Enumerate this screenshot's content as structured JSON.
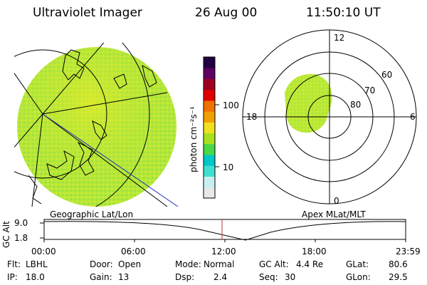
{
  "header": {
    "instrument": "Ultraviolet Imager",
    "date": "26 Aug 00",
    "time": "11:50:10 UT"
  },
  "colorbar": {
    "unit_label": "photon cm⁻²s⁻¹",
    "tick_100": "100",
    "tick_10": "10",
    "colors": [
      "#e8e8e8",
      "#c8f0f0",
      "#40e0d0",
      "#00c8c8",
      "#48d848",
      "#a8e020",
      "#f0e020",
      "#f0a000",
      "#f07000",
      "#e00000",
      "#a00020",
      "#600060",
      "#200040"
    ]
  },
  "geo_panel": {
    "label": "Geographic Lat/Lon",
    "fill_color": "#b4e83a"
  },
  "polar_panel": {
    "label": "Apex MLat/MLT",
    "mlt_12": "12",
    "mlt_18": "18",
    "mlt_6": "6",
    "mlt_0": "0",
    "lat_60": "60",
    "lat_70": "70",
    "lat_80": "80"
  },
  "altitude_plot": {
    "ylabel": "GC Alt",
    "y_top": "9.0",
    "y_bottom": "1.8",
    "x_ticks": [
      "00:00",
      "06:00",
      "12:00",
      "18:00",
      "23:59"
    ]
  },
  "footer": {
    "filter_label": "Flt:",
    "filter_value": "LBHL",
    "door_label": "Door:",
    "door_value": "Open",
    "mode_label": "Mode:",
    "mode_value": "Normal",
    "gcalt_label": "GC Alt:",
    "gcalt_value": "4.4 Re",
    "glat_label": "GLat:",
    "glat_value": "80.6",
    "ip_label": "IP:",
    "ip_value": "18.0",
    "gain_label": "Gain:",
    "gain_value": "13",
    "dsp_label": "Dsp:",
    "dsp_value": "2.4",
    "seq_label": "Seq:",
    "seq_value": "30",
    "glon_label": "GLon:",
    "glon_value": "29.5"
  }
}
